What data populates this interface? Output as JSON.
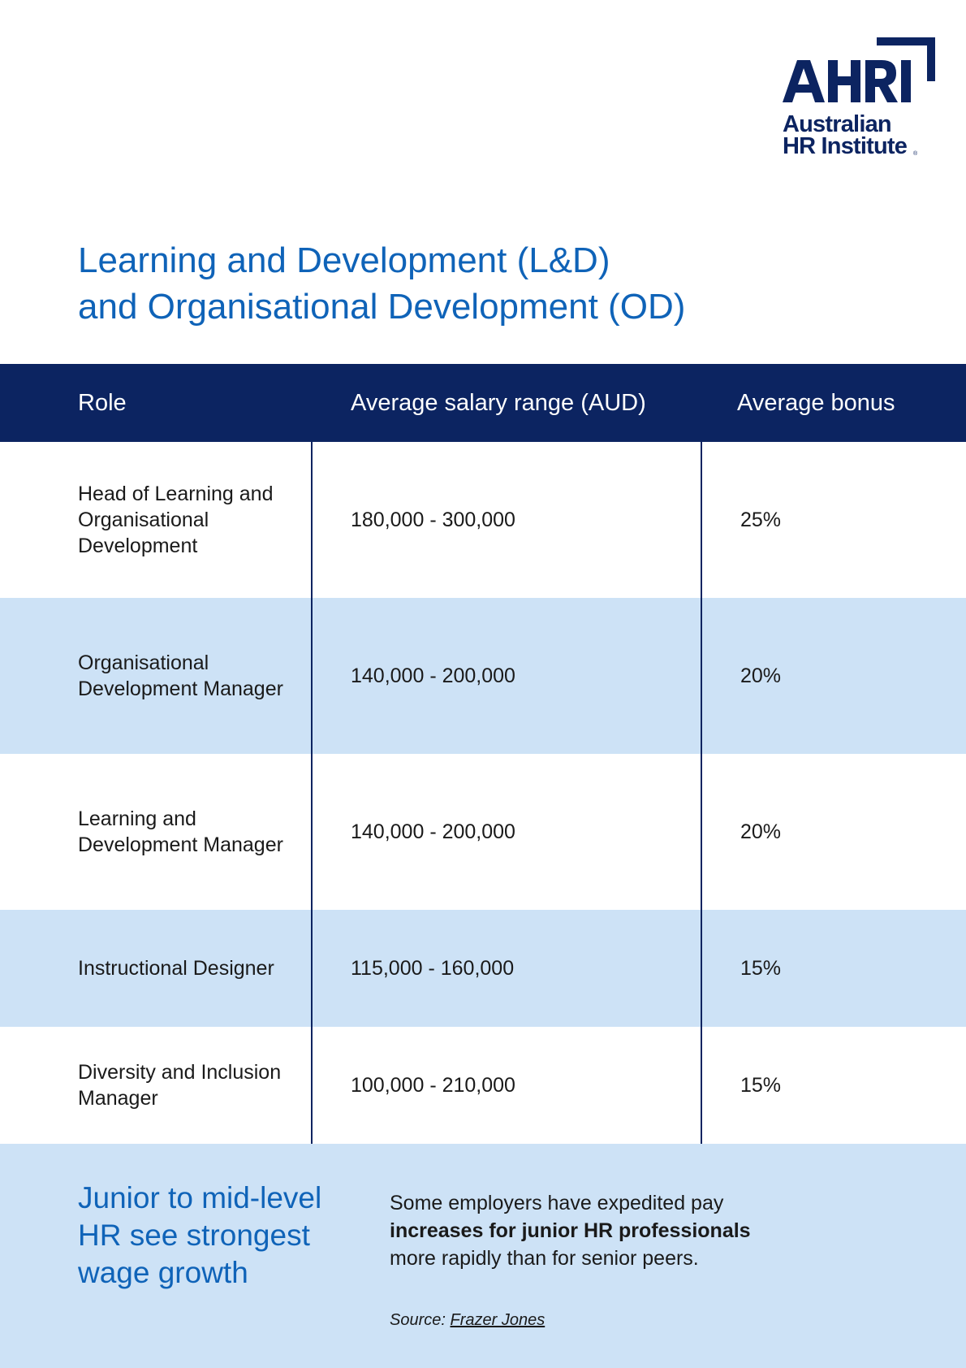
{
  "logo": {
    "acronym": "AHRI",
    "line1": "Australian",
    "line2": "HR Institute",
    "reg": "®"
  },
  "title": {
    "line1": "Learning and Development (L&D)",
    "line2": "and Organisational Development (OD)"
  },
  "table": {
    "headers": [
      "Role",
      "Average salary range (AUD)",
      "Average bonus"
    ],
    "rows": [
      {
        "role": "Head of Learning and Organisational Development",
        "salary": "180,000 - 300,000",
        "bonus": "25%"
      },
      {
        "role": "Organisational Development Manager",
        "salary": "140,000 - 200,000",
        "bonus": "20%"
      },
      {
        "role": "Learning and Development Manager",
        "salary": "140,000 - 200,000",
        "bonus": "20%"
      },
      {
        "role": "Instructional Designer",
        "salary": "115,000 - 160,000",
        "bonus": "15%"
      },
      {
        "role": "Diversity and Inclusion Manager",
        "salary": "100,000 - 210,000",
        "bonus": "15%"
      }
    ]
  },
  "footer": {
    "headline": "Junior to mid-level HR see strongest wage growth",
    "text_before": "Some employers have expedited pay",
    "text_bold": "increases for junior HR professionals",
    "text_after": "more rapidly than for senior peers.",
    "source_label": "Source:",
    "source_name": "Frazer Jones"
  },
  "colors": {
    "navy": "#0c2461",
    "blue_title": "#0f63b8",
    "light_blue": "#cde2f6"
  }
}
